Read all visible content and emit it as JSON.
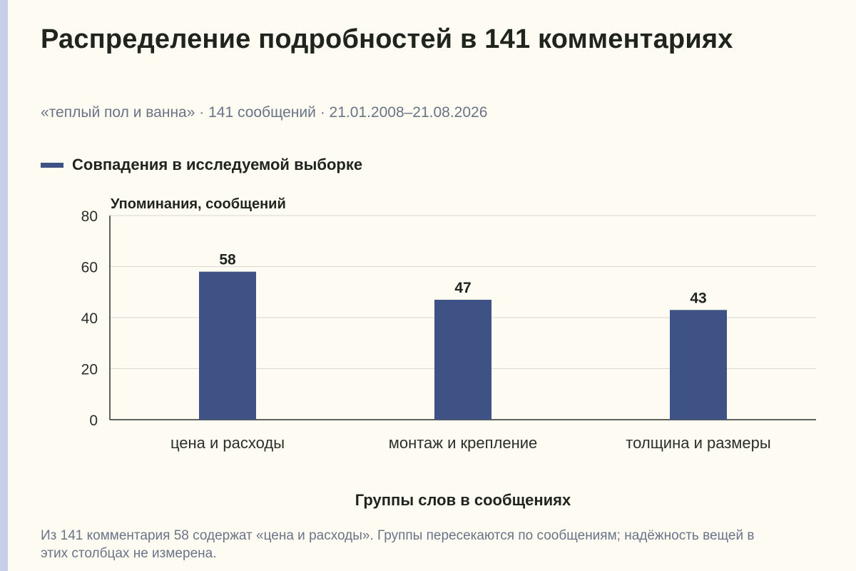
{
  "title": "Распределение подробностей в 141 комментариях",
  "subtitle": "«теплый пол и ванна» · 141 сообщений · 21.01.2008–21.08.2026",
  "note": "Из 141 комментария 58 содержат «цена и расходы». Группы пересекаются по сообщениям; надёжность вещей в этих столбцах не измерена.",
  "chart_data": {
    "type": "bar",
    "categories": [
      "цена и расходы",
      "монтаж и крепление",
      "толщина и размеры"
    ],
    "series": [
      {
        "name": "Совпадения в исследуемой выборке",
        "values": [
          58,
          47,
          43
        ]
      }
    ],
    "xlabel": "Группы слов в сообщениях",
    "ylabel": "Упоминания, сообщений",
    "ylim": [
      0,
      80
    ],
    "yticks": [
      0,
      20,
      40,
      60,
      80
    ],
    "grid": true,
    "legend": "top-left",
    "bar_color": "#3e5286"
  }
}
